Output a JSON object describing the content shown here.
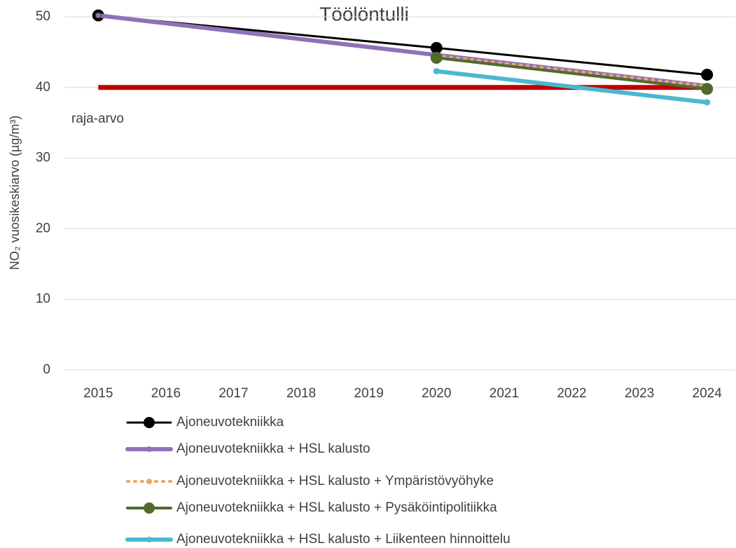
{
  "chart_data": {
    "type": "line",
    "title": "Töölöntulli",
    "y_label": "NO₂ vuosikeskiarvo (µg/m³)",
    "xlim": [
      2014.5,
      2024.5
    ],
    "xticks": [
      2015,
      2016,
      2017,
      2018,
      2019,
      2020,
      2021,
      2022,
      2023,
      2024
    ],
    "ylim": [
      0,
      50
    ],
    "yticks": [
      0,
      10,
      20,
      30,
      40,
      50
    ],
    "grid": true,
    "limit": {
      "value": 40,
      "x": [
        2015,
        2024
      ],
      "label": "raja-arvo",
      "color": "#c00000"
    },
    "series": [
      {
        "name": "Ajoneuvotekniikka",
        "color": "#000000",
        "x": [
          2015,
          2020,
          2024
        ],
        "values": [
          50.2,
          45.6,
          41.8
        ]
      },
      {
        "name": "Ajoneuvotekniikka + HSL kalusto",
        "color": "#8e72b8",
        "x": [
          2015,
          2020,
          2024
        ],
        "values": [
          50.2,
          44.6,
          40.2
        ]
      },
      {
        "name": "Ajoneuvotekniikka + HSL kalusto + Ympäristövyöhyke",
        "color": "#f4a460",
        "linestyle": "dotted",
        "x": [
          2020,
          2024
        ],
        "values": [
          44.5,
          40.2
        ]
      },
      {
        "name": "Ajoneuvotekniikka + HSL kalusto + Pysäköintipolitiikka",
        "color": "#4f6b2a",
        "x": [
          2020,
          2024
        ],
        "values": [
          44.2,
          39.8
        ]
      },
      {
        "name": "Ajoneuvotekniikka + HSL kalusto + Liikenteen hinnoittelu",
        "color": "#4bb8d0",
        "x": [
          2020,
          2024
        ],
        "values": [
          42.3,
          37.9
        ]
      }
    ]
  }
}
